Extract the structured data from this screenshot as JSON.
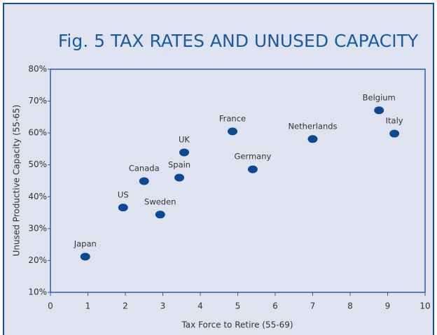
{
  "chart_data": {
    "type": "scatter",
    "title": "Fig. 5  TAX RATES AND UNUSED CAPACITY",
    "x_label": "Tax Force to Retire (55-69)",
    "y_label": "Unused Productive Capacity (55-65)",
    "categories": [
      "Japan",
      "US",
      "Canada",
      "Sweden",
      "Spain",
      "UK",
      "France",
      "Germany",
      "Netherlands",
      "Belgium",
      "Italy"
    ],
    "x": [
      0.93,
      1.94,
      2.5,
      2.93,
      3.44,
      3.57,
      4.86,
      5.4,
      7.0,
      8.77,
      9.18
    ],
    "values": [
      21.2,
      36.6,
      44.9,
      34.4,
      46.0,
      53.9,
      60.5,
      48.6,
      58.1,
      67.1,
      59.8
    ],
    "color": "#0b4a93",
    "xlim": [
      0,
      10
    ],
    "xticks": [
      0,
      1,
      2,
      3,
      4,
      5,
      6,
      7,
      8,
      9,
      10
    ],
    "ylim": [
      10,
      80
    ],
    "yticks": [
      {
        "value": 10,
        "label": "10%"
      },
      {
        "value": 20,
        "label": "20%"
      },
      {
        "value": 30,
        "label": "30%"
      },
      {
        "value": 40,
        "label": "40%"
      },
      {
        "value": 50,
        "label": "50%"
      },
      {
        "value": 60,
        "label": "60%"
      },
      {
        "value": 70,
        "label": "70%"
      },
      {
        "value": 80,
        "label": "80%"
      }
    ]
  }
}
